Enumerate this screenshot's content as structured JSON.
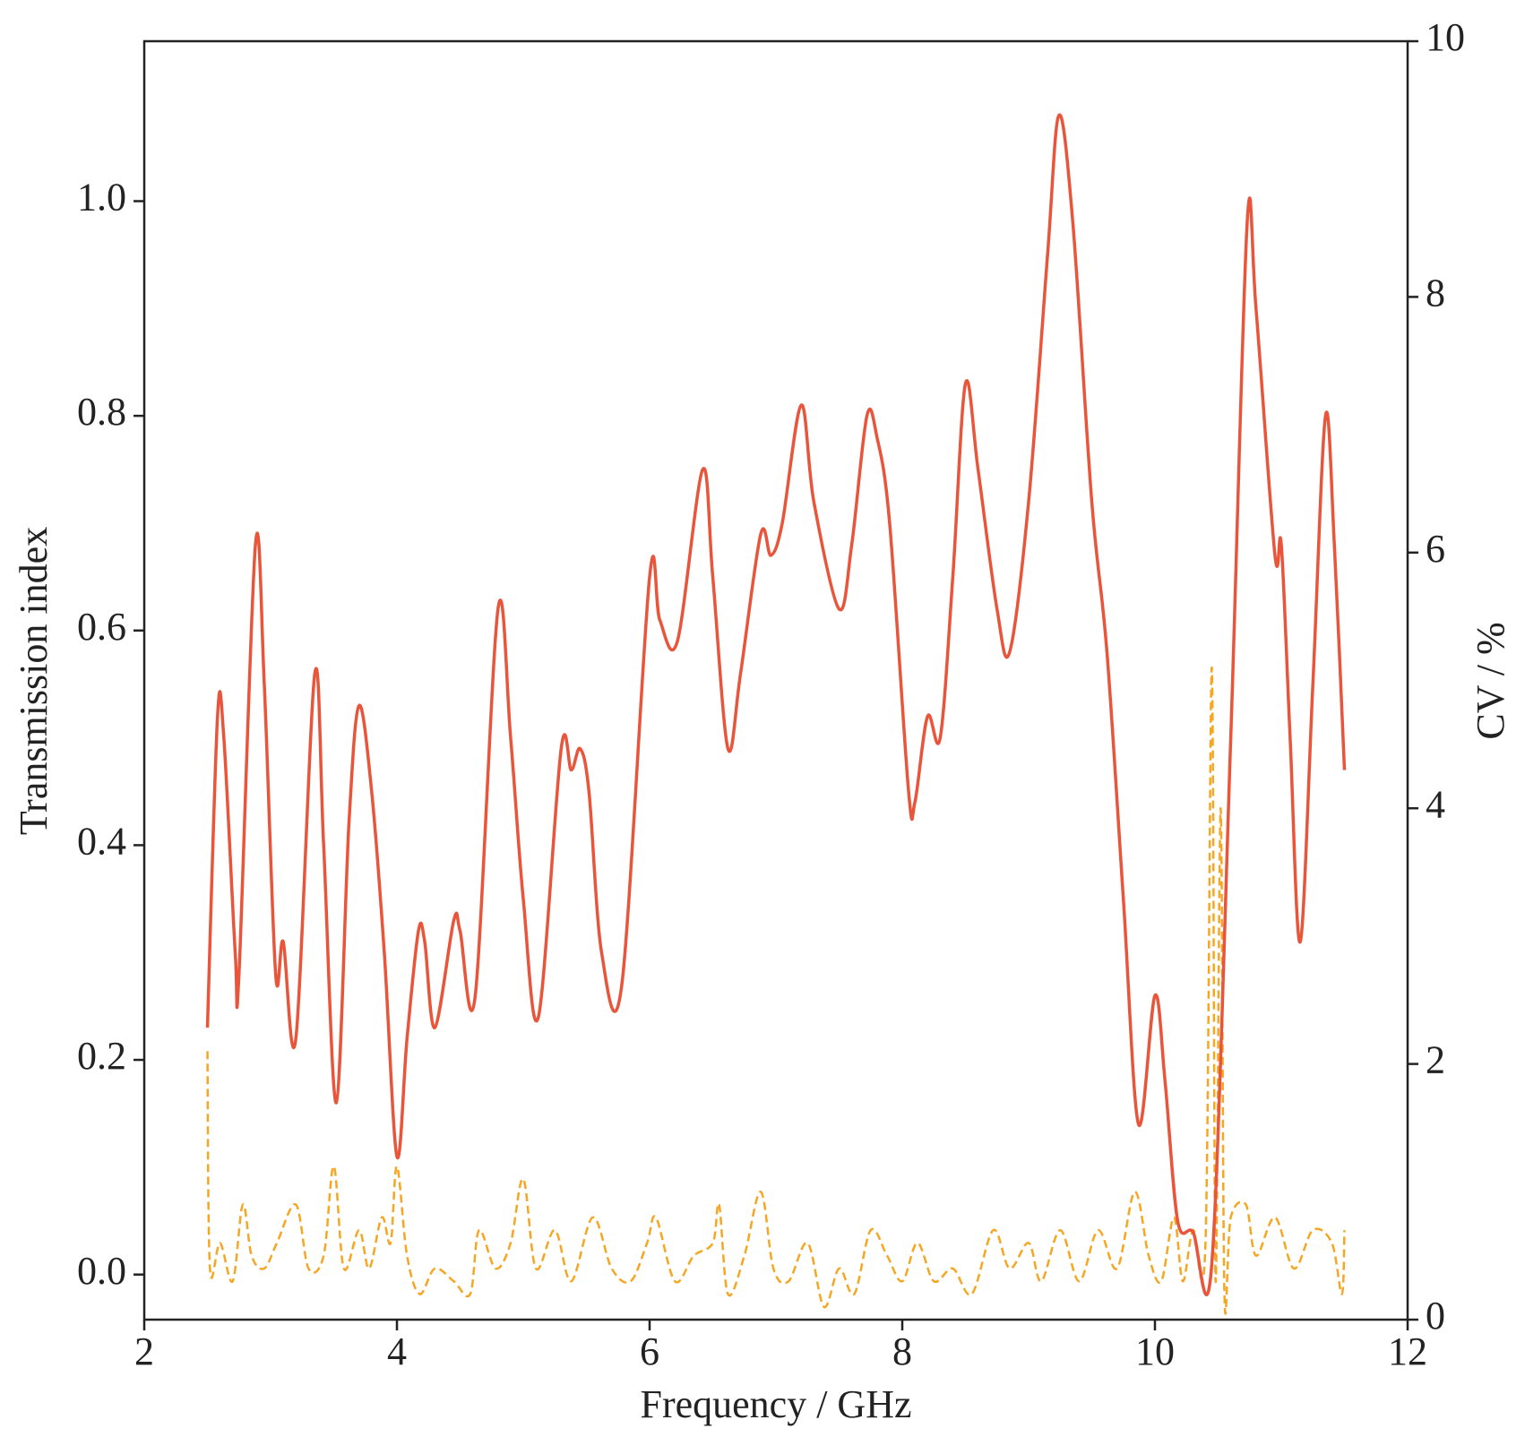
{
  "chart_data": {
    "type": "line",
    "xlabel": "Frequency / GHz",
    "ylabel": "Transmission index",
    "y2label": "CV / %",
    "xlim": [
      2,
      12
    ],
    "xticks": [
      2,
      4,
      6,
      8,
      10,
      12
    ],
    "ylim": [
      -0.042,
      1.149
    ],
    "yticks": [
      {
        "value": 0,
        "label": "0.0"
      },
      0.2,
      0.4,
      0.6,
      0.8,
      {
        "value": 1,
        "label": "1.0"
      }
    ],
    "y2lim": [
      0,
      10
    ],
    "y2ticks": [
      0,
      2,
      4,
      6,
      8,
      10
    ],
    "series": [
      {
        "color": "#e8553a",
        "style": "solid",
        "x": [
          2.5,
          2.58,
          2.63,
          2.72,
          2.75,
          2.88,
          2.95,
          3.04,
          3.1,
          3.2,
          3.35,
          3.42,
          3.52,
          3.62,
          3.7,
          3.8,
          3.9,
          4.0,
          4.08,
          4.17,
          4.22,
          4.3,
          4.45,
          4.5,
          4.62,
          4.8,
          4.9,
          5.0,
          5.12,
          5.3,
          5.38,
          5.45,
          5.52,
          5.62,
          5.78,
          6.0,
          6.08,
          6.22,
          6.42,
          6.5,
          6.62,
          6.72,
          6.88,
          6.96,
          7.05,
          7.2,
          7.3,
          7.5,
          7.6,
          7.72,
          7.8,
          7.9,
          8.05,
          8.1,
          8.2,
          8.3,
          8.4,
          8.5,
          8.6,
          8.75,
          8.85,
          9.0,
          9.15,
          9.24,
          9.35,
          9.5,
          9.62,
          9.75,
          9.87,
          10.0,
          10.08,
          10.18,
          10.3,
          10.45,
          10.6,
          10.73,
          10.8,
          10.95,
          11.0,
          11.07,
          11.15,
          11.25,
          11.35,
          11.42,
          11.5
        ],
        "values": [
          0.23,
          0.52,
          0.5,
          0.3,
          0.28,
          0.68,
          0.55,
          0.28,
          0.31,
          0.22,
          0.56,
          0.4,
          0.16,
          0.42,
          0.53,
          0.45,
          0.3,
          0.11,
          0.22,
          0.32,
          0.31,
          0.23,
          0.33,
          0.32,
          0.26,
          0.62,
          0.5,
          0.35,
          0.24,
          0.49,
          0.47,
          0.49,
          0.45,
          0.3,
          0.27,
          0.65,
          0.61,
          0.59,
          0.75,
          0.65,
          0.49,
          0.56,
          0.69,
          0.67,
          0.7,
          0.81,
          0.72,
          0.62,
          0.68,
          0.8,
          0.78,
          0.7,
          0.45,
          0.44,
          0.52,
          0.5,
          0.65,
          0.83,
          0.75,
          0.62,
          0.58,
          0.72,
          0.95,
          1.08,
          0.98,
          0.72,
          0.58,
          0.35,
          0.14,
          0.26,
          0.18,
          0.05,
          0.04,
          0.01,
          0.5,
          0.98,
          0.9,
          0.67,
          0.68,
          0.5,
          0.31,
          0.55,
          0.8,
          0.68,
          0.47
        ]
      },
      {
        "color": "#f5a623",
        "style": "dashed",
        "axis": "y2",
        "x": [
          2.5,
          2.52,
          2.6,
          2.7,
          2.78,
          2.85,
          2.95,
          3.05,
          3.2,
          3.3,
          3.42,
          3.5,
          3.58,
          3.7,
          3.78,
          3.88,
          3.95,
          4.0,
          4.08,
          4.18,
          4.3,
          4.45,
          4.58,
          4.65,
          4.78,
          4.9,
          5.0,
          5.1,
          5.25,
          5.38,
          5.55,
          5.7,
          5.85,
          5.98,
          6.05,
          6.2,
          6.35,
          6.5,
          6.55,
          6.62,
          6.75,
          6.88,
          6.98,
          7.1,
          7.25,
          7.38,
          7.5,
          7.62,
          7.75,
          7.88,
          8.0,
          8.12,
          8.25,
          8.4,
          8.55,
          8.72,
          8.85,
          9.0,
          9.1,
          9.25,
          9.4,
          9.55,
          9.7,
          9.84,
          9.95,
          10.05,
          10.15,
          10.22,
          10.3,
          10.4,
          10.45,
          10.48,
          10.52,
          10.55,
          10.6,
          10.72,
          10.8,
          10.95,
          11.1,
          11.25,
          11.4,
          11.48,
          11.5
        ],
        "values": [
          2.1,
          0.4,
          0.6,
          0.3,
          0.9,
          0.5,
          0.4,
          0.6,
          0.9,
          0.4,
          0.5,
          1.2,
          0.4,
          0.7,
          0.4,
          0.8,
          0.6,
          1.2,
          0.5,
          0.2,
          0.4,
          0.3,
          0.2,
          0.7,
          0.4,
          0.6,
          1.1,
          0.4,
          0.7,
          0.3,
          0.8,
          0.4,
          0.3,
          0.6,
          0.8,
          0.3,
          0.5,
          0.6,
          0.9,
          0.2,
          0.5,
          1.0,
          0.4,
          0.3,
          0.6,
          0.1,
          0.4,
          0.2,
          0.7,
          0.5,
          0.3,
          0.6,
          0.3,
          0.4,
          0.2,
          0.7,
          0.4,
          0.6,
          0.3,
          0.7,
          0.3,
          0.7,
          0.4,
          1.0,
          0.5,
          0.3,
          0.8,
          0.3,
          0.7,
          0.6,
          5.1,
          0.3,
          4.0,
          0.2,
          0.8,
          0.9,
          0.5,
          0.8,
          0.4,
          0.7,
          0.6,
          0.2,
          0.7
        ]
      }
    ]
  }
}
